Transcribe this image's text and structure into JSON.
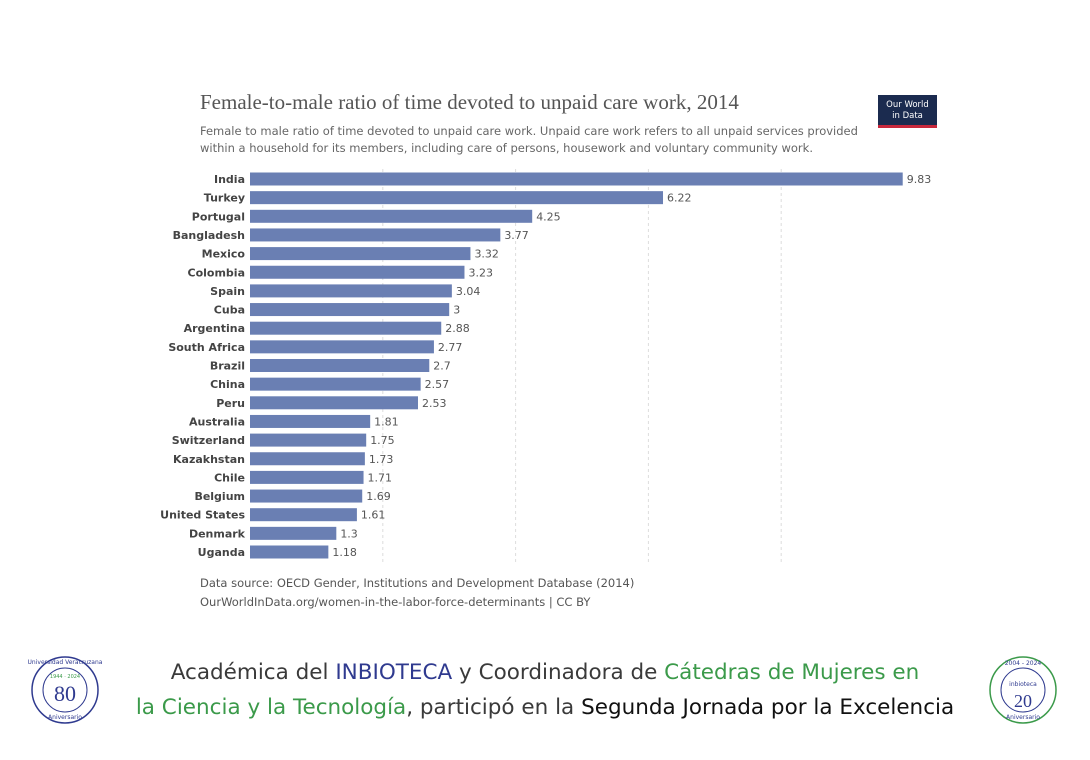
{
  "chart_data": {
    "type": "bar",
    "orientation": "horizontal",
    "title": "Female-to-male ratio of time devoted to unpaid care work, 2014",
    "subtitle": [
      "Female to male ratio of time devoted to unpaid care work. Unpaid care work refers to all unpaid services provided",
      "within a household for its members, including care of persons, housework and voluntary community work."
    ],
    "badge": [
      "Our World",
      "in Data"
    ],
    "categories": [
      "India",
      "Turkey",
      "Portugal",
      "Bangladesh",
      "Mexico",
      "Colombia",
      "Spain",
      "Cuba",
      "Argentina",
      "South Africa",
      "Brazil",
      "China",
      "Peru",
      "Australia",
      "Switzerland",
      "Kazakhstan",
      "Chile",
      "Belgium",
      "United States",
      "Denmark",
      "Uganda"
    ],
    "values": [
      9.83,
      6.22,
      4.25,
      3.77,
      3.32,
      3.23,
      3.04,
      3,
      2.88,
      2.77,
      2.7,
      2.57,
      2.53,
      1.81,
      1.75,
      1.73,
      1.71,
      1.69,
      1.61,
      1.3,
      1.18
    ],
    "color": "#6a7fb3",
    "xlim": [
      0,
      10
    ],
    "xgrid": [
      2,
      4,
      6,
      8
    ],
    "grid": true,
    "source": [
      "Data source: OECD Gender, Institutions and Development Database (2014)",
      "OurWorldInData.org/women-in-the-labor-force-determinants | CC BY"
    ]
  },
  "caption": {
    "lines": [
      [
        {
          "text": "Académica del ",
          "color": "#3a3a3a"
        },
        {
          "text": "INBIOTECA",
          "color": "#2f3a8f"
        },
        {
          "text": " y Coordinadora de ",
          "color": "#3a3a3a"
        },
        {
          "text": "Cátedras de Mujeres en",
          "color": "#3b9a4a"
        }
      ],
      [
        {
          "text": "la Ciencia y la Tecnología",
          "color": "#3b9a4a"
        },
        {
          "text": ", participó en la ",
          "color": "#3a3a3a"
        },
        {
          "text": "Segunda Jornada por la Excelencia",
          "color": "#111111"
        }
      ]
    ]
  },
  "logos": {
    "left": {
      "ring": "Universidad Veracruzana",
      "years": "1944 · 2024",
      "number": "80",
      "bottom": "Aniversario"
    },
    "right": {
      "ring": "2004 - 2024",
      "name": "inbioteca",
      "number": "20",
      "bottom": "Aniversario"
    }
  }
}
